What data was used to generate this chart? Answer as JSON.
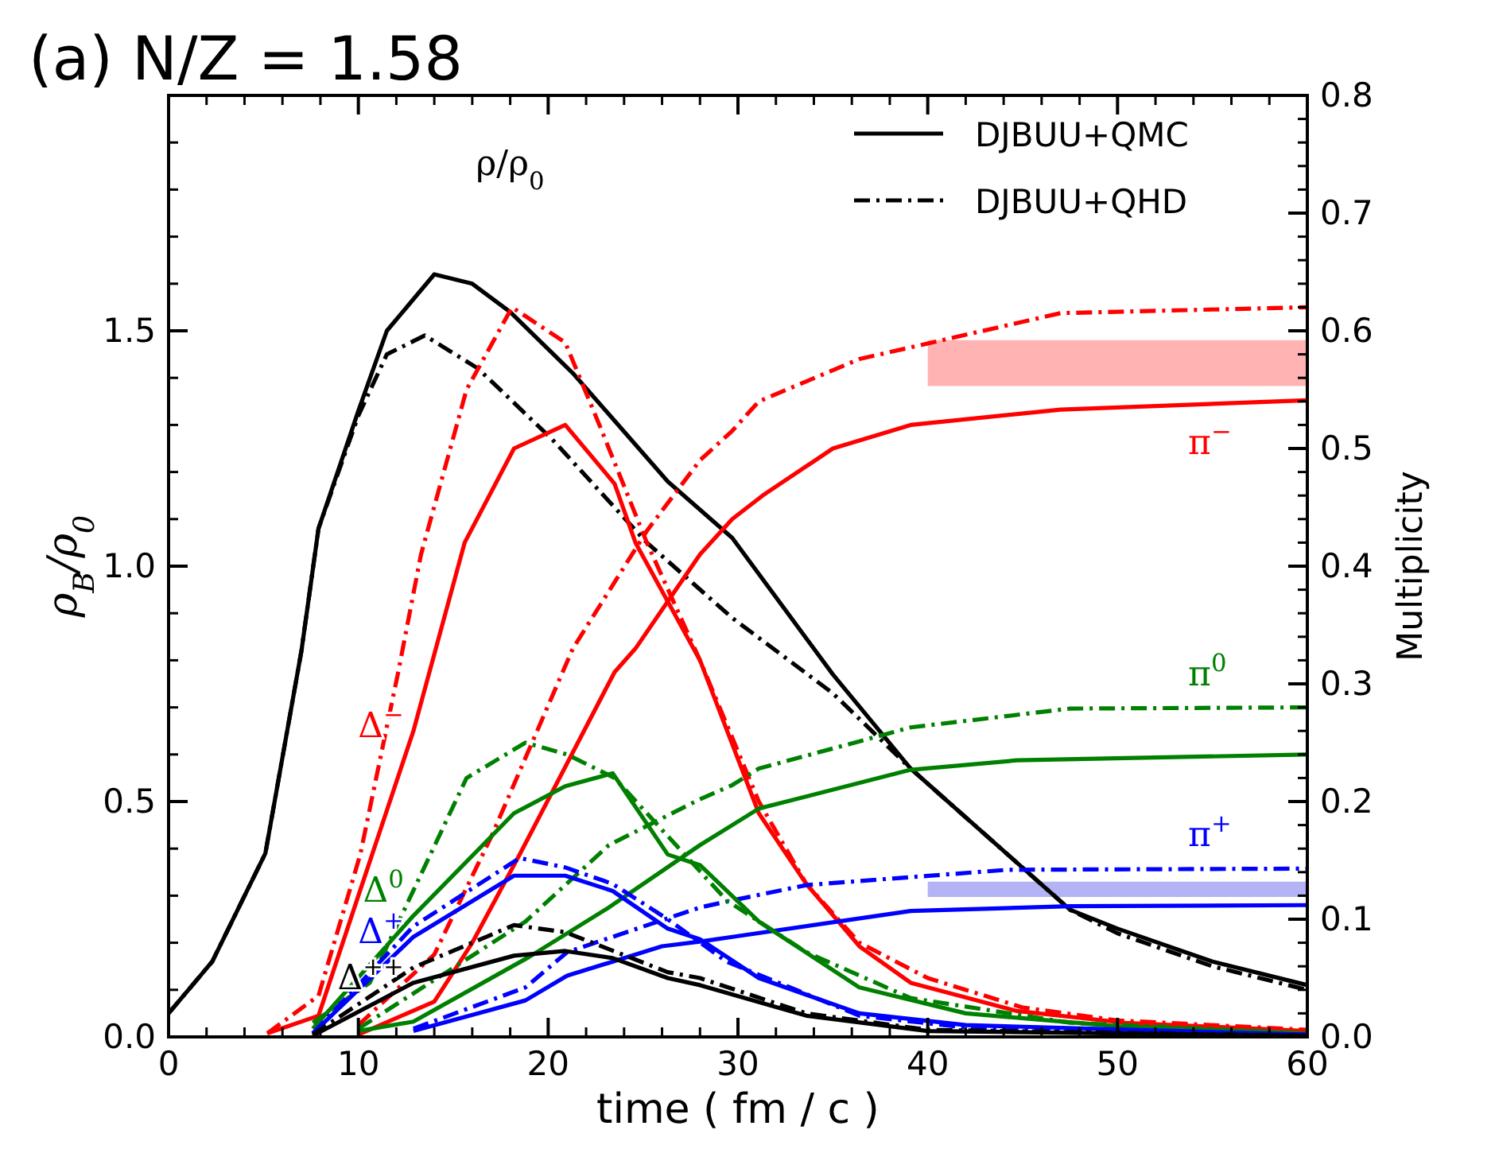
{
  "chart_data": {
    "type": "line",
    "title": "(a) N/Z = 1.58",
    "xlabel": "time ( fm / c )",
    "ylabel": "ρ$_{B}$/ρ$_{0}$",
    "y2label": "Multiplicity",
    "xlim": [
      0,
      60
    ],
    "xticks": [
      0,
      10,
      20,
      30,
      40,
      50,
      60
    ],
    "ylim": [
      0,
      2.0
    ],
    "yticks": [
      {
        "value": 0,
        "label": "0.0"
      },
      {
        "value": 0.5,
        "label": "0.5"
      },
      {
        "value": 1,
        "label": "1.0"
      },
      {
        "value": 1.5,
        "label": "1.5"
      }
    ],
    "y2lim": [
      0,
      0.8
    ],
    "y2ticks": [
      {
        "value": 0,
        "label": "0.0"
      },
      {
        "value": 0.1,
        "label": "0.1"
      },
      {
        "value": 0.2,
        "label": "0.2"
      },
      {
        "value": 0.3,
        "label": "0.3"
      },
      {
        "value": 0.4,
        "label": "0.4"
      },
      {
        "value": 0.5,
        "label": "0.5"
      },
      {
        "value": 0.6,
        "label": "0.6"
      },
      {
        "value": 0.7,
        "label": "0.7"
      },
      {
        "value": 0.8,
        "label": "0.8"
      }
    ],
    "grid": false,
    "legend": "top right",
    "marker": "none",
    "series": [
      {
        "name": "DJBUU+QMC",
        "color": "#000000",
        "line_style": "solid",
        "x": [
          0,
          2.3,
          5.1,
          7,
          7.9,
          10,
          11.5,
          14,
          16,
          18,
          21.3,
          26.3,
          29.7,
          35,
          39.1,
          47.5,
          50,
          55,
          60
        ],
        "values": [
          0.05,
          0.16,
          0.39,
          0.82,
          1.08,
          1.33,
          1.5,
          1.62,
          1.6,
          1.54,
          1.41,
          1.18,
          1.06,
          0.77,
          0.57,
          0.27,
          0.23,
          0.16,
          0.11
        ]
      },
      {
        "name": "DJBUU+QHD",
        "color": "#000000",
        "line_style": "dashdot",
        "x": [
          0,
          2.3,
          5.1,
          7,
          7.9,
          10,
          11.5,
          13.5,
          16.3,
          20.2,
          25.2,
          29.7,
          35,
          39.1,
          47.5,
          50,
          55,
          60
        ],
        "values": [
          0.05,
          0.16,
          0.39,
          0.82,
          1.08,
          1.32,
          1.45,
          1.49,
          1.42,
          1.27,
          1.05,
          0.89,
          0.73,
          0.57,
          0.27,
          0.22,
          0.15,
          0.1
        ]
      },
      {
        "name": "Δ$^{−}$",
        "color": "#ff0000",
        "axis": "y2",
        "line_style": "solid",
        "x": [
          5.2,
          7.9,
          10,
          12.9,
          15.6,
          18.2,
          20.9,
          23.5,
          24.6,
          28,
          31.1,
          33.6,
          36.4,
          39.1,
          44.7,
          50.4,
          60
        ],
        "values": [
          0.003,
          0.018,
          0.12,
          0.26,
          0.42,
          0.5,
          0.52,
          0.47,
          0.42,
          0.32,
          0.19,
          0.13,
          0.077,
          0.046,
          0.022,
          0.012,
          0.005
        ]
      },
      {
        "color": "#ff0000",
        "axis": "y2",
        "line_style": "dashdot",
        "x": [
          5.2,
          7.9,
          10.1,
          12.1,
          13.3,
          15.7,
          18.1,
          20.9,
          22.7,
          25.2,
          28,
          31.1,
          33.6,
          36.4,
          40,
          45,
          50,
          60
        ],
        "values": [
          0.003,
          0.035,
          0.155,
          0.31,
          0.41,
          0.55,
          0.62,
          0.59,
          0.52,
          0.42,
          0.32,
          0.2,
          0.13,
          0.08,
          0.05,
          0.025,
          0.014,
          0.006
        ]
      },
      {
        "name": "π$^{−}$",
        "color": "#ff0000",
        "axis": "y2",
        "line_style": "solid",
        "x": [
          10,
          14,
          16,
          18.5,
          23.5,
          24.6,
          28,
          29.7,
          31.3,
          35,
          39.1,
          47,
          60
        ],
        "values": [
          0.002,
          0.03,
          0.08,
          0.155,
          0.31,
          0.33,
          0.41,
          0.44,
          0.46,
          0.5,
          0.52,
          0.533,
          0.541
        ]
      },
      {
        "color": "#ff0000",
        "axis": "y2",
        "line_style": "dashdot",
        "x": [
          10,
          14,
          17,
          21.3,
          25.2,
          28,
          29.7,
          31.1,
          36.4,
          47,
          60
        ],
        "values": [
          0.01,
          0.07,
          0.17,
          0.33,
          0.43,
          0.49,
          0.515,
          0.54,
          0.576,
          0.615,
          0.62
        ]
      },
      {
        "color": "#008000",
        "axis": "y2",
        "line_style": "solid",
        "x": [
          10,
          12.9,
          19,
          23.2,
          28,
          29.7,
          31.1,
          39.1,
          44.7,
          60
        ],
        "values": [
          0.005,
          0.013,
          0.068,
          0.11,
          0.163,
          0.18,
          0.194,
          0.227,
          0.235,
          0.24
        ]
      },
      {
        "name": "π$^{0}$",
        "color": "#008000",
        "axis": "y2",
        "line_style": "dashdot",
        "x": [
          10,
          18.8,
          23.2,
          28,
          29.7,
          31.1,
          39.1,
          47.5,
          60
        ],
        "values": [
          0.007,
          0.098,
          0.163,
          0.202,
          0.214,
          0.228,
          0.263,
          0.279,
          0.28
        ]
      },
      {
        "color": "#0000ff",
        "axis": "y2",
        "line_style": "solid",
        "x": [
          12.9,
          18.8,
          21,
          26,
          28,
          29.7,
          39.1,
          47.5,
          60
        ],
        "values": [
          0.005,
          0.031,
          0.052,
          0.077,
          0.081,
          0.085,
          0.107,
          0.111,
          0.112
        ]
      },
      {
        "name": "π$^{+}$",
        "color": "#0000ff",
        "axis": "y2",
        "line_style": "dashdot",
        "x": [
          12.9,
          18.8,
          21,
          28,
          29.7,
          33.6,
          44.2,
          60
        ],
        "values": [
          0.007,
          0.042,
          0.072,
          0.11,
          0.116,
          0.129,
          0.142,
          0.143
        ]
      },
      {
        "name": "Δ$^{0}$",
        "color": "#008000",
        "axis": "y2",
        "line_style": "solid",
        "x": [
          7.6,
          12.9,
          18.2,
          20.9,
          23.4,
          26.3,
          28,
          31.1,
          36.4,
          42,
          50,
          60
        ],
        "values": [
          0.007,
          0.103,
          0.19,
          0.213,
          0.224,
          0.155,
          0.146,
          0.098,
          0.042,
          0.02,
          0.009,
          0.003
        ]
      },
      {
        "color": "#008000",
        "axis": "y2",
        "line_style": "dashdot",
        "x": [
          7.6,
          10.6,
          15.7,
          18.8,
          21,
          23.5,
          29.4,
          33.6,
          39.1,
          47.5,
          60
        ],
        "values": [
          0.012,
          0.046,
          0.22,
          0.25,
          0.24,
          0.22,
          0.116,
          0.072,
          0.033,
          0.012,
          0.003
        ]
      },
      {
        "name": "Δ$^{+}$",
        "color": "#0000ff",
        "axis": "y2",
        "line_style": "solid",
        "x": [
          7.6,
          12.9,
          18.2,
          20.9,
          23.4,
          26.3,
          28,
          31.1,
          36.4,
          42,
          60
        ],
        "values": [
          0.003,
          0.085,
          0.137,
          0.137,
          0.124,
          0.092,
          0.083,
          0.05,
          0.02,
          0.01,
          0.002
        ]
      },
      {
        "color": "#0000ff",
        "axis": "y2",
        "line_style": "dashdot",
        "x": [
          7.6,
          12.9,
          18.5,
          20.9,
          23.4,
          26.3,
          29.4,
          36.4,
          42,
          60
        ],
        "values": [
          0.003,
          0.094,
          0.152,
          0.144,
          0.13,
          0.1,
          0.064,
          0.018,
          0.008,
          0.002
        ]
      },
      {
        "name": "Δ$^{++}$",
        "color": "#000000",
        "axis": "y2",
        "line_style": "solid",
        "x": [
          7.6,
          12.9,
          18.2,
          20.9,
          23.4,
          26.3,
          28,
          33.6,
          40,
          60
        ],
        "values": [
          0.001,
          0.046,
          0.069,
          0.073,
          0.067,
          0.05,
          0.044,
          0.018,
          0.005,
          0.001
        ]
      },
      {
        "color": "#000000",
        "axis": "y2",
        "line_style": "dashdot",
        "x": [
          7.6,
          12.9,
          18.2,
          20.9,
          26.3,
          28,
          33.6,
          40,
          60
        ],
        "values": [
          0.002,
          0.059,
          0.095,
          0.089,
          0.055,
          0.05,
          0.02,
          0.006,
          0.001
        ]
      },
      {
        "type": "area",
        "color": "#ffb3b3",
        "axis": "y2",
        "x": [
          40,
          60
        ],
        "values": [
          null,
          null
        ],
        "lower": [
          0.553,
          0.553
        ],
        "upper": [
          0.592,
          0.592
        ]
      },
      {
        "type": "area",
        "color": "#b3b3f5",
        "axis": "y2",
        "x": [
          40,
          60
        ],
        "values": [
          null,
          null
        ],
        "lower": [
          0.119,
          0.119
        ],
        "upper": [
          0.132,
          0.132
        ]
      }
    ],
    "annotations": [
      "ρ/ρ$_{0}$"
    ]
  }
}
